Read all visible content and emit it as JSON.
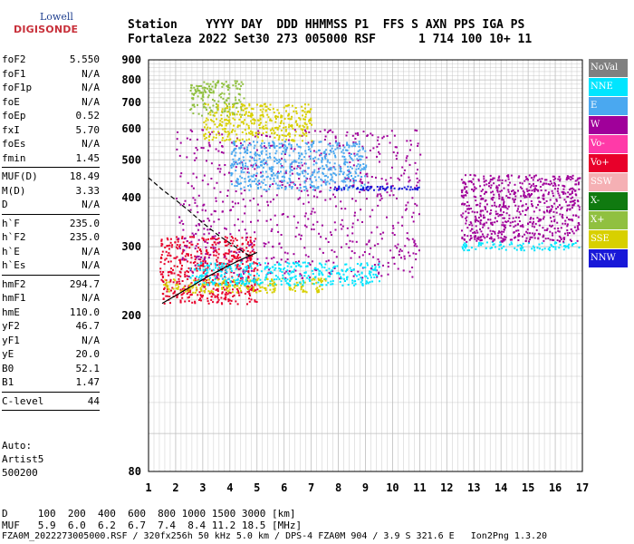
{
  "logo": {
    "line1": "Lowell",
    "line2": "DIGISONDE"
  },
  "header": {
    "labels": [
      "Station",
      "YYYY DAY",
      "DDD HHMMSS P1",
      "FFS S AXN PPS IGA PS"
    ],
    "values": [
      "Fortaleza",
      "2022 Set30",
      "273 005000 RSF",
      "1 714 100 10+ 11"
    ]
  },
  "params": [
    {
      "name": "foF2",
      "value": "5.550"
    },
    {
      "name": "foF1",
      "value": "N/A"
    },
    {
      "name": "foF1p",
      "value": "N/A"
    },
    {
      "name": "foE",
      "value": "N/A"
    },
    {
      "name": "foEp",
      "value": "0.52"
    },
    {
      "name": "fxI",
      "value": "5.70"
    },
    {
      "name": "foEs",
      "value": "N/A"
    },
    {
      "name": "fmin",
      "value": "1.45"
    },
    {
      "sep": true
    },
    {
      "name": "MUF(D)",
      "value": "18.49"
    },
    {
      "name": "M(D)",
      "value": "3.33"
    },
    {
      "name": "D",
      "value": "N/A"
    },
    {
      "sep": true
    },
    {
      "name": "h`F",
      "value": "235.0"
    },
    {
      "name": "h`F2",
      "value": "235.0"
    },
    {
      "name": "h`E",
      "value": "N/A"
    },
    {
      "name": "h`Es",
      "value": "N/A"
    },
    {
      "sep": true
    },
    {
      "name": "hmF2",
      "value": "294.7"
    },
    {
      "name": "hmF1",
      "value": "N/A"
    },
    {
      "name": "hmE",
      "value": "110.0"
    },
    {
      "name": "yF2",
      "value": "46.7"
    },
    {
      "name": "yF1",
      "value": "N/A"
    },
    {
      "name": "yE",
      "value": "20.0"
    },
    {
      "name": "B0",
      "value": "52.1"
    },
    {
      "name": "B1",
      "value": "1.47"
    },
    {
      "sep": true
    },
    {
      "name": "C-level",
      "value": "44"
    },
    {
      "sep": true
    }
  ],
  "auto": {
    "line1": "Auto:",
    "line2": "Artist5",
    "line3": "500200"
  },
  "legend": [
    {
      "label": "NoVal",
      "color": "#808080"
    },
    {
      "label": "NNE",
      "color": "#00e5ff"
    },
    {
      "label": "E",
      "color": "#4aa8f0"
    },
    {
      "label": "W",
      "color": "#a0009a"
    },
    {
      "label": "Vo-",
      "color": "#ff3aa8"
    },
    {
      "label": "Vo+",
      "color": "#e8002a"
    },
    {
      "label": "SSW",
      "color": "#f5b0b4"
    },
    {
      "label": "X-",
      "color": "#107a10"
    },
    {
      "label": "X+",
      "color": "#90c040"
    },
    {
      "label": "SSE",
      "color": "#d8d000"
    },
    {
      "label": "NNW",
      "color": "#1818d8"
    }
  ],
  "footer": {
    "d_line": "D     100  200  400  600  800 1000 1500 3000 [km]",
    "muf_line": "MUF   5.9  6.0  6.2  6.7  7.4  8.4 11.2 18.5 [MHz]",
    "file_line": "FZA0M_2022273005000.RSF / 320fx256h 50 kHz 5.0 km / DPS-4 FZA0M 904 / 3.9 S 321.6 E   Ion2Png 1.3.20"
  },
  "chart_data": {
    "type": "scatter",
    "title": "",
    "xlabel": "",
    "ylabel": "",
    "xlim": [
      1,
      17
    ],
    "ylim": [
      80,
      900
    ],
    "y_scale": "log",
    "x_ticks": [
      "1",
      "2",
      "3",
      "4",
      "5",
      "6",
      "7",
      "8",
      "9",
      "10",
      "11",
      "12",
      "13",
      "14",
      "15",
      "16",
      "17"
    ],
    "y_ticks": [
      {
        "value": 900,
        "label": "900"
      },
      {
        "value": 800,
        "label": "800"
      },
      {
        "value": 700,
        "label": "700"
      },
      {
        "value": 600,
        "label": "600"
      },
      {
        "value": 500,
        "label": "500"
      },
      {
        "value": 400,
        "label": "400"
      },
      {
        "value": 300,
        "label": "300"
      },
      {
        "value": 200,
        "label": "200"
      },
      {
        "value": 80,
        "label": "80"
      }
    ],
    "grid": true,
    "legend_position": "right",
    "echo_regions": [
      {
        "direction": "Vo+",
        "x": [
          1.4,
          5.0
        ],
        "y": [
          215,
          320
        ]
      },
      {
        "direction": "W",
        "x": [
          2.0,
          11.0
        ],
        "y": [
          250,
          600
        ]
      },
      {
        "direction": "SSE",
        "x": [
          1.5,
          7.5
        ],
        "y": [
          230,
          250
        ]
      },
      {
        "direction": "NNE",
        "x": [
          2.5,
          9.5
        ],
        "y": [
          240,
          275
        ]
      },
      {
        "direction": "E",
        "x": [
          4.0,
          9.0
        ],
        "y": [
          420,
          560
        ]
      },
      {
        "direction": "NNW",
        "x": [
          7.8,
          11.0
        ],
        "y": [
          420,
          430
        ]
      },
      {
        "direction": "NNE",
        "x": [
          12.5,
          16.9
        ],
        "y": [
          295,
          310
        ]
      },
      {
        "direction": "W",
        "x": [
          12.5,
          16.9
        ],
        "y": [
          310,
          460
        ]
      },
      {
        "direction": "X+",
        "x": [
          2.5,
          4.5
        ],
        "y": [
          650,
          800
        ]
      },
      {
        "direction": "SSE",
        "x": [
          3.0,
          7.0
        ],
        "y": [
          560,
          700
        ]
      }
    ],
    "traces": [
      {
        "name": "virtual height trace",
        "x": [
          1.5,
          2.0,
          2.6,
          3.2,
          3.8,
          4.4,
          5.0
        ],
        "y": [
          215,
          225,
          238,
          252,
          265,
          278,
          290
        ]
      },
      {
        "name": "extrapolated profile",
        "x": [
          1.0,
          1.5,
          2.0,
          2.5,
          3.0,
          3.6,
          4.2,
          4.8
        ],
        "y": [
          450,
          420,
          395,
          370,
          345,
          320,
          300,
          282
        ]
      }
    ]
  }
}
